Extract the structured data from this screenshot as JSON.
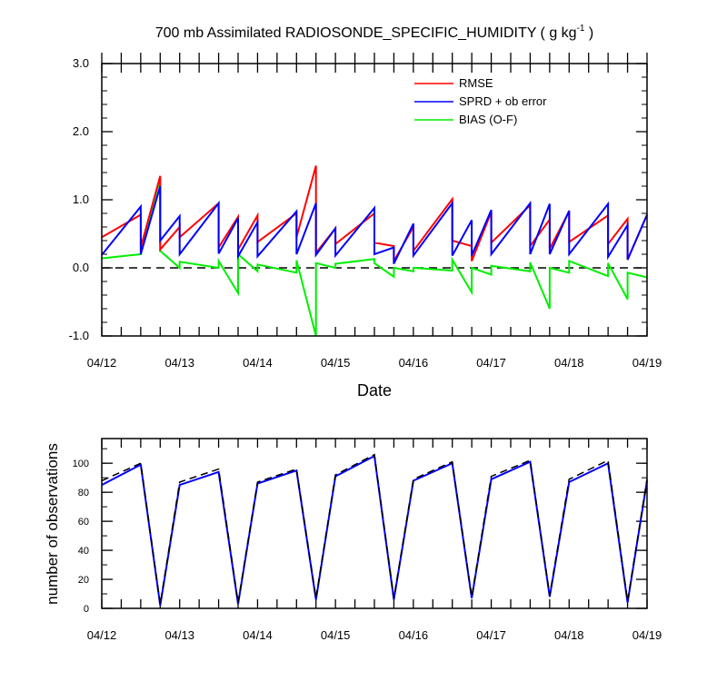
{
  "colors": {
    "rmse": "#ff0000",
    "sprd": "#0000ff",
    "bias": "#00ee00",
    "axis": "#000000",
    "obs_used": "#0000ff",
    "obs_possible": "#000000"
  },
  "chart_data": [
    {
      "type": "line",
      "title": "700 mb Assimilated RADIOSONDE_SPECIFIC_HUMIDITY ( g kg",
      "title_superscript": "-1",
      "title_suffix": " )",
      "xlabel": "Date",
      "ylabel": "",
      "xlim": [
        0,
        28
      ],
      "ylim": [
        -1.0,
        3.0
      ],
      "ytick_values": [
        -1.0,
        0.0,
        1.0,
        2.0,
        3.0
      ],
      "ytick_labels": [
        "-1.0",
        "0.0",
        "1.0",
        "2.0",
        "3.0"
      ],
      "xtick_values": [
        0,
        4,
        8,
        12,
        16,
        20,
        24,
        28
      ],
      "xtick_labels": [
        "04/12",
        "04/13",
        "04/14",
        "04/15",
        "04/16",
        "04/17",
        "04/18",
        "04/19"
      ],
      "zero_line": true,
      "legend_position": "top-right",
      "series": [
        {
          "name": "RMSE",
          "color_key": "rmse",
          "segments": [
            [
              [
                0,
                0.45
              ],
              [
                2,
                0.78
              ]
            ],
            [
              [
                2,
                0.3
              ],
              [
                3,
                1.35
              ]
            ],
            [
              [
                3,
                0.27
              ],
              [
                4,
                0.6
              ]
            ],
            [
              [
                4,
                0.45
              ],
              [
                6,
                0.95
              ]
            ],
            [
              [
                6,
                0.3
              ],
              [
                7,
                0.75
              ]
            ],
            [
              [
                7,
                0.27
              ],
              [
                8,
                0.77
              ]
            ],
            [
              [
                8,
                0.38
              ],
              [
                10,
                0.8
              ]
            ],
            [
              [
                10,
                0.45
              ],
              [
                11,
                1.5
              ]
            ],
            [
              [
                11,
                0.22
              ],
              [
                12,
                0.58
              ]
            ],
            [
              [
                12,
                0.35
              ],
              [
                14,
                0.8
              ]
            ],
            [
              [
                14,
                0.37
              ],
              [
                15,
                0.32
              ]
            ],
            [
              [
                15,
                0.1
              ],
              [
                16,
                0.6
              ]
            ],
            [
              [
                16,
                0.25
              ],
              [
                18,
                1.01
              ]
            ],
            [
              [
                18,
                0.4
              ],
              [
                19,
                0.32
              ]
            ],
            [
              [
                19,
                0.1
              ],
              [
                20,
                0.82
              ]
            ],
            [
              [
                20,
                0.37
              ],
              [
                22,
                0.92
              ]
            ],
            [
              [
                22,
                0.32
              ],
              [
                23,
                0.71
              ]
            ],
            [
              [
                23,
                0.28
              ],
              [
                24,
                0.83
              ]
            ],
            [
              [
                24,
                0.38
              ],
              [
                26,
                0.77
              ]
            ],
            [
              [
                26,
                0.35
              ],
              [
                27,
                0.72
              ]
            ],
            [
              [
                27,
                0.12
              ],
              [
                28,
                0.78
              ]
            ]
          ]
        },
        {
          "name": "SPRD + ob error",
          "color_key": "sprd",
          "segments": [
            [
              [
                0,
                0.19
              ],
              [
                2,
                0.9
              ]
            ],
            [
              [
                2,
                0.2
              ],
              [
                3,
                1.2
              ]
            ],
            [
              [
                3,
                0.4
              ],
              [
                4,
                0.76
              ]
            ],
            [
              [
                4,
                0.2
              ],
              [
                6,
                0.95
              ]
            ],
            [
              [
                6,
                0.21
              ],
              [
                7,
                0.73
              ]
            ],
            [
              [
                7,
                0.17
              ],
              [
                8,
                0.67
              ]
            ],
            [
              [
                8,
                0.17
              ],
              [
                10,
                0.83
              ]
            ],
            [
              [
                10,
                0.2
              ],
              [
                11,
                0.95
              ]
            ],
            [
              [
                11,
                0.19
              ],
              [
                12,
                0.58
              ]
            ],
            [
              [
                12,
                0.18
              ],
              [
                14,
                0.88
              ]
            ],
            [
              [
                14,
                0.2
              ],
              [
                15,
                0.3
              ]
            ],
            [
              [
                15,
                0.06
              ],
              [
                16,
                0.65
              ]
            ],
            [
              [
                16,
                0.18
              ],
              [
                18,
                0.95
              ]
            ],
            [
              [
                18,
                0.18
              ],
              [
                19,
                0.7
              ]
            ],
            [
              [
                19,
                0.18
              ],
              [
                20,
                0.85
              ]
            ],
            [
              [
                20,
                0.2
              ],
              [
                22,
                0.95
              ]
            ],
            [
              [
                22,
                0.2
              ],
              [
                23,
                0.94
              ]
            ],
            [
              [
                23,
                0.2
              ],
              [
                24,
                0.84
              ]
            ],
            [
              [
                24,
                0.2
              ],
              [
                26,
                0.94
              ]
            ],
            [
              [
                26,
                0.16
              ],
              [
                27,
                0.63
              ]
            ],
            [
              [
                27,
                0.12
              ],
              [
                28,
                0.78
              ]
            ]
          ]
        },
        {
          "name": "BIAS (O-F)",
          "color_key": "bias",
          "segments": [
            [
              [
                0,
                0.14
              ],
              [
                2,
                0.2
              ]
            ],
            [
              [
                2,
                0.22
              ],
              [
                3,
                1.32
              ]
            ],
            [
              [
                3,
                0.25
              ],
              [
                4,
                0.0
              ]
            ],
            [
              [
                4,
                0.09
              ],
              [
                6,
                0.0
              ]
            ],
            [
              [
                6,
                0.1
              ],
              [
                7,
                -0.37
              ]
            ],
            [
              [
                7,
                0.2
              ],
              [
                8,
                -0.05
              ]
            ],
            [
              [
                8,
                0.05
              ],
              [
                10,
                -0.07
              ]
            ],
            [
              [
                10,
                0.11
              ],
              [
                11,
                -1.0
              ]
            ],
            [
              [
                11,
                0.07
              ],
              [
                12,
                0.0
              ]
            ],
            [
              [
                12,
                0.06
              ],
              [
                14,
                0.13
              ]
            ],
            [
              [
                14,
                0.07
              ],
              [
                15,
                -0.13
              ]
            ],
            [
              [
                15,
                0.0
              ],
              [
                16,
                -0.05
              ]
            ],
            [
              [
                16,
                0.0
              ],
              [
                18,
                -0.04
              ]
            ],
            [
              [
                18,
                0.12
              ],
              [
                19,
                -0.36
              ]
            ],
            [
              [
                19,
                0.0
              ],
              [
                20,
                -0.1
              ]
            ],
            [
              [
                20,
                0.03
              ],
              [
                22,
                -0.05
              ]
            ],
            [
              [
                22,
                0.08
              ],
              [
                23,
                -0.6
              ]
            ],
            [
              [
                23,
                0.0
              ],
              [
                24,
                -0.07
              ]
            ],
            [
              [
                24,
                0.1
              ],
              [
                26,
                -0.12
              ]
            ],
            [
              [
                26,
                0.07
              ],
              [
                27,
                -0.46
              ]
            ],
            [
              [
                27,
                -0.07
              ],
              [
                28,
                -0.14
              ]
            ]
          ]
        }
      ]
    },
    {
      "type": "line",
      "title": "",
      "xlabel": "",
      "ylabel": "number of observations",
      "xlim": [
        0,
        28
      ],
      "ylim": [
        0,
        117
      ],
      "ytick_values": [
        0,
        20,
        40,
        60,
        80,
        100
      ],
      "ytick_labels": [
        "0",
        "20",
        "40",
        "60",
        "80",
        "100"
      ],
      "xtick_values": [
        0,
        4,
        8,
        12,
        16,
        20,
        24,
        28
      ],
      "xtick_labels": [
        "04/12",
        "04/13",
        "04/14",
        "04/15",
        "04/16",
        "04/17",
        "04/18",
        "04/19"
      ],
      "series": [
        {
          "color_key": "obs_possible",
          "dashed": true,
          "points": [
            [
              0,
              88
            ],
            [
              2,
              100
            ],
            [
              3,
              3
            ],
            [
              4,
              87
            ],
            [
              6,
              96
            ],
            [
              7,
              4
            ],
            [
              8,
              87
            ],
            [
              10,
              96
            ],
            [
              11,
              7
            ],
            [
              12,
              92
            ],
            [
              14,
              106
            ],
            [
              15,
              7
            ],
            [
              16,
              89
            ],
            [
              18,
              101
            ],
            [
              19,
              8
            ],
            [
              20,
              91
            ],
            [
              22,
              102
            ],
            [
              23,
              9
            ],
            [
              24,
              89
            ],
            [
              26,
              102
            ],
            [
              27,
              5
            ],
            [
              28,
              89
            ]
          ]
        },
        {
          "color_key": "obs_used",
          "dashed": false,
          "points": [
            [
              0,
              85
            ],
            [
              2,
              99
            ],
            [
              3,
              2
            ],
            [
              4,
              85
            ],
            [
              6,
              94
            ],
            [
              7,
              3
            ],
            [
              8,
              86
            ],
            [
              10,
              95
            ],
            [
              11,
              6
            ],
            [
              12,
              91
            ],
            [
              14,
              105
            ],
            [
              15,
              6
            ],
            [
              16,
              88
            ],
            [
              18,
              100
            ],
            [
              19,
              7
            ],
            [
              20,
              89
            ],
            [
              22,
              101
            ],
            [
              23,
              8
            ],
            [
              24,
              87
            ],
            [
              26,
              100
            ],
            [
              27,
              4
            ],
            [
              28,
              88
            ]
          ]
        }
      ]
    }
  ]
}
